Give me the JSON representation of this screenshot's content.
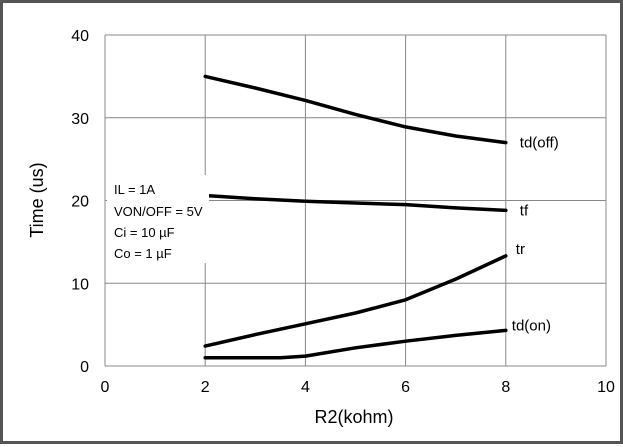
{
  "chart_data": {
    "type": "line",
    "xlabel": "R2(kohm)",
    "ylabel": "Time (us)",
    "xlim": [
      0,
      10
    ],
    "ylim": [
      0,
      40
    ],
    "xticks": [
      0,
      2,
      4,
      6,
      8,
      10
    ],
    "yticks": [
      0,
      10,
      20,
      30,
      40
    ],
    "grid": true,
    "series": [
      {
        "name": "td(off)",
        "x": [
          2,
          3,
          4,
          5,
          6,
          7,
          8
        ],
        "y": [
          35,
          33.6,
          32.1,
          30.4,
          28.9,
          27.8,
          27
        ]
      },
      {
        "name": "tf",
        "x": [
          2,
          3,
          4,
          5,
          6,
          7,
          8
        ],
        "y": [
          20.6,
          20.2,
          19.9,
          19.7,
          19.5,
          19.1,
          18.8
        ]
      },
      {
        "name": "tr",
        "x": [
          2,
          3,
          4,
          5,
          6,
          7,
          8
        ],
        "y": [
          2.4,
          3.8,
          5.1,
          6.4,
          8,
          10.5,
          13.3
        ]
      },
      {
        "name": "td(on)",
        "x": [
          2,
          3,
          3.5,
          4,
          5,
          6,
          7,
          8
        ],
        "y": [
          1,
          1,
          1,
          1.2,
          2.2,
          3,
          3.7,
          4.3
        ]
      }
    ],
    "annotation": [
      "IL = 1A",
      "VON/OFF = 5V",
      "Ci = 10 µF",
      "Co = 1 µF"
    ],
    "line_color": "#000000",
    "grid_color": "#888888"
  }
}
